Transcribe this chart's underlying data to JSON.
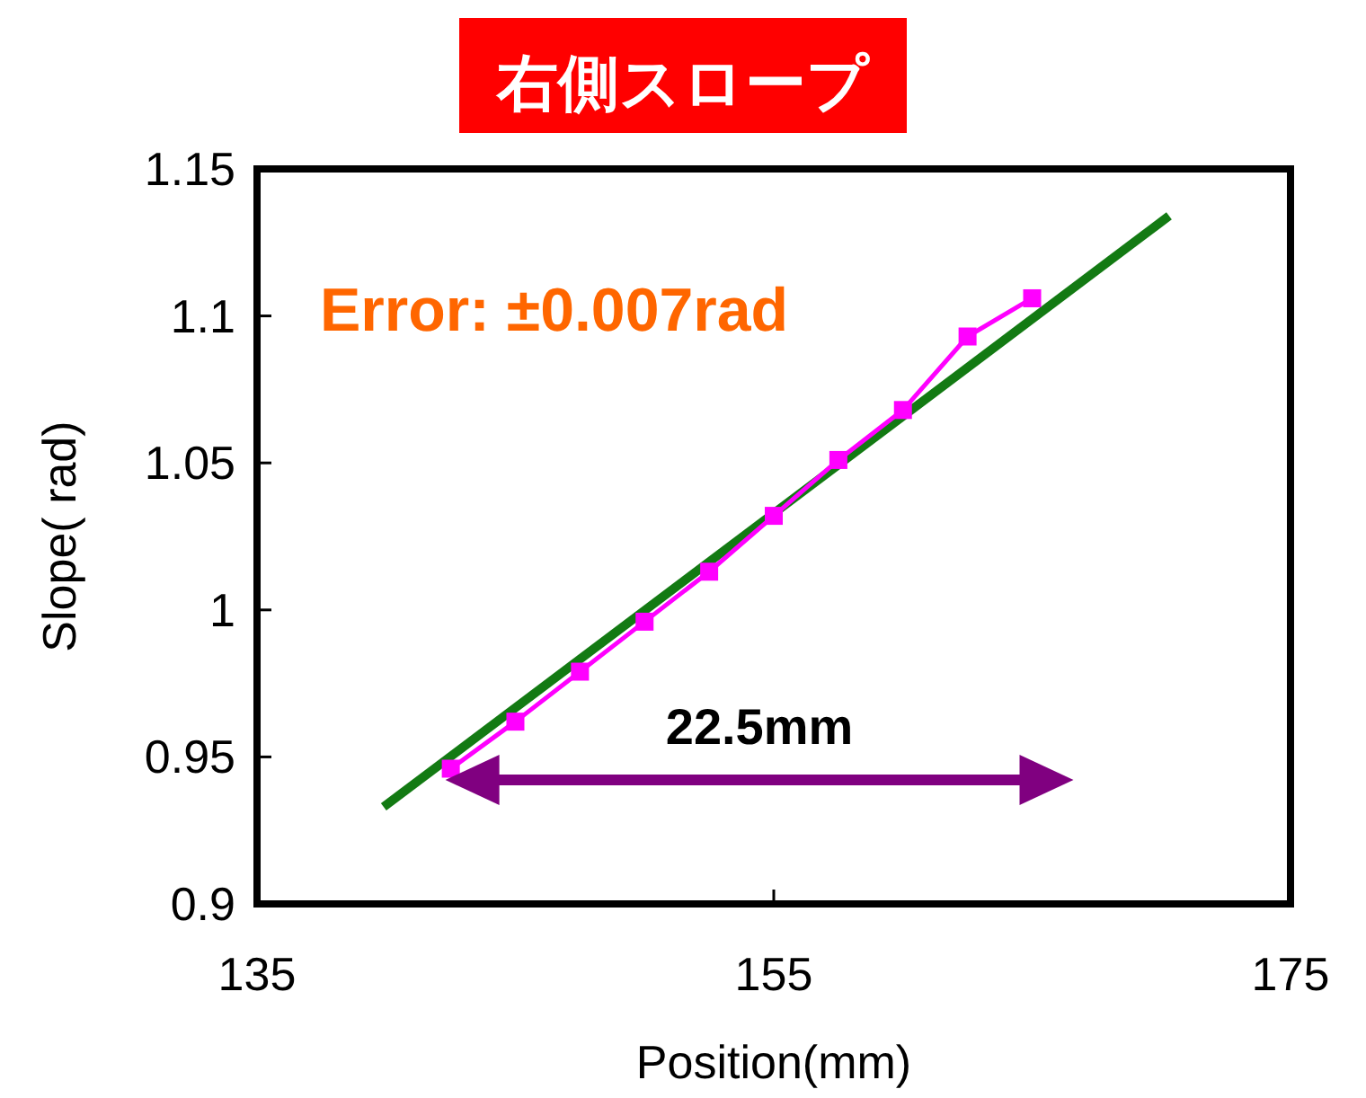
{
  "chart_data": {
    "type": "line",
    "title": "右側スロープ",
    "xlabel": "Position(mm)",
    "ylabel": "Slope( rad)",
    "xlim": [
      135,
      175
    ],
    "xticks": [
      135,
      155,
      175
    ],
    "ylim": [
      0.9,
      1.15
    ],
    "yticks": [
      0.9,
      0.95,
      1,
      1.05,
      1.1,
      1.15
    ],
    "annotations": [
      "Error: ±0.007rad",
      "22.5mm"
    ],
    "series": [
      {
        "color": "#ff00ff",
        "marker": "square",
        "x": [
          142.5,
          145,
          147.5,
          150,
          152.5,
          155,
          157.5,
          160,
          162.5,
          165
        ],
        "values": [
          0.946,
          0.962,
          0.979,
          0.996,
          1.013,
          1.032,
          1.051,
          1.068,
          1.093,
          1.106
        ]
      },
      {
        "color": "#137a13",
        "marker": "none",
        "x": [
          139.9,
          170.3
        ],
        "values": [
          0.933,
          1.134
        ]
      }
    ]
  }
}
